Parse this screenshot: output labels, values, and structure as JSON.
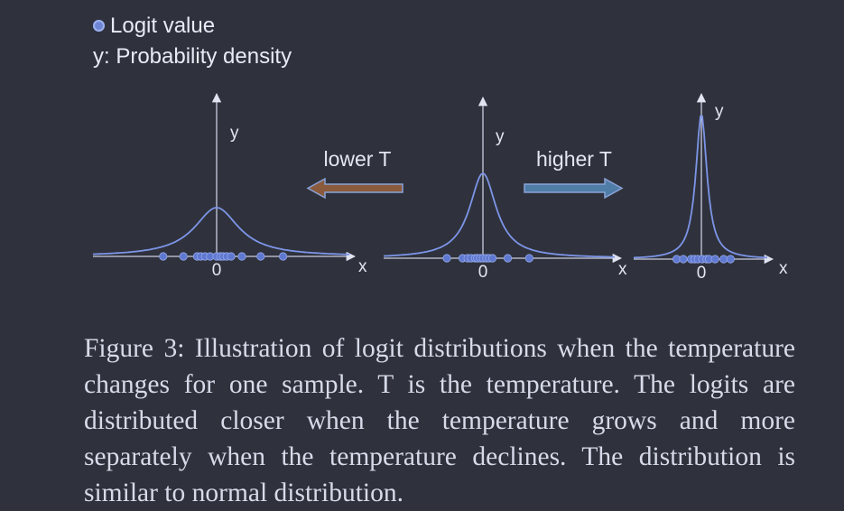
{
  "legend": {
    "dot_label": "Logit value",
    "y_label": "y: Probability density"
  },
  "plots": [
    {
      "y_label": "y",
      "origin_label": "0",
      "x_label": "x",
      "points": [
        -3.7,
        -2.3,
        -1.35,
        -1.1,
        -0.8,
        -0.45,
        0.0,
        0.25,
        0.45,
        0.7,
        1.0,
        1.75,
        3.05,
        4.6
      ]
    },
    {
      "y_label": "y",
      "origin_label": "0",
      "x_label": "x",
      "points": [
        -3.2,
        -1.8,
        -1.35,
        -1.05,
        -0.7,
        -0.5,
        -0.25,
        0.0,
        0.3,
        0.55,
        0.85,
        2.2,
        4.1
      ]
    },
    {
      "y_label": "y",
      "origin_label": "0",
      "x_label": "x",
      "points": [
        -1.45,
        -1.05,
        -0.6,
        -0.4,
        -0.2,
        0.05,
        0.3,
        0.45,
        0.8,
        1.3,
        1.7
      ]
    }
  ],
  "arrows": {
    "lower_label": "lower T",
    "higher_label": "higher T",
    "lower_color": "#8a5a3c",
    "higher_color": "#4f7da6"
  },
  "colors": {
    "background": "#2f323c",
    "axis": "#c9cde0",
    "curve": "#7d95e8",
    "dot": "#5f78d0"
  },
  "caption": "Figure 3: Illustration of logit distributions when the temperature changes for one sample. T is the temperature. The logits are distributed closer when the temperature grows and more separately when the temperature declines. The distribution is similar to normal distribution."
}
